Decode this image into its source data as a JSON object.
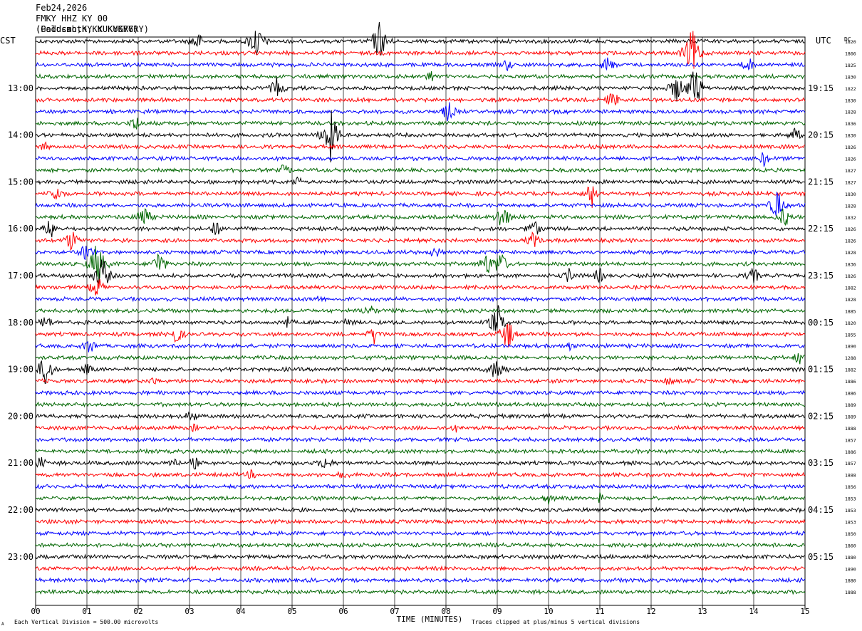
{
  "header": {
    "date": "Feb24,2026",
    "station": "FMKY HHZ KY 00",
    "location_a": "(Goldsmoth,KY KUKYGRY)",
    "location_b": "(Paducah,KY KUKYGRY)"
  },
  "chart_data": {
    "type": "line",
    "title": "",
    "xlabel": "TIME (MINUTES)",
    "left_axis_label": "CST",
    "right_axis_label": "UTC",
    "right_column_label": "DC",
    "xlim": [
      0,
      15
    ],
    "x_ticks": [
      "00",
      "01",
      "02",
      "03",
      "04",
      "05",
      "06",
      "07",
      "08",
      "09",
      "10",
      "11",
      "12",
      "13",
      "14",
      "15"
    ],
    "left_hour_labels": [
      "13:00",
      "14:00",
      "15:00",
      "16:00",
      "17:00",
      "18:00",
      "19:00",
      "20:00",
      "21:00",
      "22:00",
      "23:00"
    ],
    "right_hour_labels": [
      "19:15",
      "20:15",
      "21:15",
      "22:15",
      "23:15",
      "00:15",
      "01:15",
      "02:15",
      "03:15",
      "04:15",
      "05:15"
    ],
    "first_hour_label_row": 4,
    "rows_per_hour": 4,
    "trace_colors": [
      "#000000",
      "#ff0000",
      "#0000ff",
      "#006600"
    ],
    "grid": true,
    "traces": 48,
    "dc_offsets": [
      1820,
      1866,
      1825,
      1830,
      1822,
      1830,
      1828,
      1836,
      1830,
      1826,
      1826,
      1827,
      1827,
      1830,
      1828,
      1832,
      1826,
      1826,
      1828,
      1836,
      1826,
      1882,
      1828,
      1885,
      1820,
      1855,
      1890,
      1288,
      1882,
      1886,
      1886,
      1889,
      1889,
      1888,
      1857,
      1886,
      1857,
      1888,
      1856,
      1853,
      1853,
      1853,
      1850,
      1860,
      1880,
      1890,
      1880,
      1888
    ],
    "events": [
      {
        "row": 0,
        "minute": 3.15,
        "amp": 16
      },
      {
        "row": 0,
        "minute": 4.3,
        "amp": 28
      },
      {
        "row": 0,
        "minute": 6.7,
        "amp": 30
      },
      {
        "row": 1,
        "minute": 12.8,
        "amp": 40
      },
      {
        "row": 2,
        "minute": 11.15,
        "amp": 14
      },
      {
        "row": 2,
        "minute": 13.9,
        "amp": 12
      },
      {
        "row": 2,
        "minute": 9.2,
        "amp": 10
      },
      {
        "row": 3,
        "minute": 7.7,
        "amp": 10
      },
      {
        "row": 4,
        "minute": 4.7,
        "amp": 16
      },
      {
        "row": 4,
        "minute": 12.85,
        "amp": 35
      },
      {
        "row": 4,
        "minute": 12.5,
        "amp": 22
      },
      {
        "row": 5,
        "minute": 11.25,
        "amp": 14
      },
      {
        "row": 6,
        "minute": 8.05,
        "amp": 16
      },
      {
        "row": 7,
        "minute": 1.95,
        "amp": 14
      },
      {
        "row": 8,
        "minute": 5.75,
        "amp": 40
      },
      {
        "row": 8,
        "minute": 14.8,
        "amp": 12
      },
      {
        "row": 9,
        "minute": 0.2,
        "amp": 8
      },
      {
        "row": 10,
        "minute": 14.2,
        "amp": 12
      },
      {
        "row": 11,
        "minute": 4.85,
        "amp": 10
      },
      {
        "row": 13,
        "minute": 10.85,
        "amp": 20
      },
      {
        "row": 13,
        "minute": 0.4,
        "amp": 14
      },
      {
        "row": 12,
        "minute": 5.1,
        "amp": 8
      },
      {
        "row": 14,
        "minute": 14.45,
        "amp": 25
      },
      {
        "row": 15,
        "minute": 2.1,
        "amp": 20
      },
      {
        "row": 15,
        "minute": 9.1,
        "amp": 22
      },
      {
        "row": 15,
        "minute": 14.6,
        "amp": 16
      },
      {
        "row": 16,
        "minute": 0.3,
        "amp": 18
      },
      {
        "row": 16,
        "minute": 3.5,
        "amp": 14
      },
      {
        "row": 16,
        "minute": 9.7,
        "amp": 16
      },
      {
        "row": 17,
        "minute": 0.7,
        "amp": 18
      },
      {
        "row": 17,
        "minute": 9.7,
        "amp": 14
      },
      {
        "row": 18,
        "minute": 1.0,
        "amp": 16
      },
      {
        "row": 18,
        "minute": 7.8,
        "amp": 10
      },
      {
        "row": 19,
        "minute": 1.2,
        "amp": 36
      },
      {
        "row": 19,
        "minute": 2.4,
        "amp": 20
      },
      {
        "row": 19,
        "minute": 8.8,
        "amp": 18
      },
      {
        "row": 19,
        "minute": 9.05,
        "amp": 22
      },
      {
        "row": 20,
        "minute": 1.3,
        "amp": 30
      },
      {
        "row": 20,
        "minute": 10.4,
        "amp": 12
      },
      {
        "row": 20,
        "minute": 11.0,
        "amp": 12
      },
      {
        "row": 20,
        "minute": 14.0,
        "amp": 14
      },
      {
        "row": 21,
        "minute": 1.2,
        "amp": 18
      },
      {
        "row": 22,
        "minute": 5.5,
        "amp": 6
      },
      {
        "row": 23,
        "minute": 6.5,
        "amp": 12
      },
      {
        "row": 24,
        "minute": 0.2,
        "amp": 12
      },
      {
        "row": 24,
        "minute": 4.9,
        "amp": 10
      },
      {
        "row": 24,
        "minute": 9.0,
        "amp": 30
      },
      {
        "row": 24,
        "minute": 6.1,
        "amp": 8
      },
      {
        "row": 25,
        "minute": 2.75,
        "amp": 16
      },
      {
        "row": 25,
        "minute": 6.6,
        "amp": 14
      },
      {
        "row": 25,
        "minute": 9.2,
        "amp": 26
      },
      {
        "row": 26,
        "minute": 1.05,
        "amp": 14
      },
      {
        "row": 26,
        "minute": 10.4,
        "amp": 8
      },
      {
        "row": 27,
        "minute": 14.9,
        "amp": 12
      },
      {
        "row": 28,
        "minute": 0.2,
        "amp": 28
      },
      {
        "row": 28,
        "minute": 1.0,
        "amp": 10
      },
      {
        "row": 28,
        "minute": 9.0,
        "amp": 22
      },
      {
        "row": 29,
        "minute": 2.3,
        "amp": 8
      },
      {
        "row": 29,
        "minute": 12.35,
        "amp": 8
      },
      {
        "row": 32,
        "minute": 3.05,
        "amp": 10
      },
      {
        "row": 33,
        "minute": 3.1,
        "amp": 8
      },
      {
        "row": 33,
        "minute": 8.2,
        "amp": 6
      },
      {
        "row": 36,
        "minute": 0.1,
        "amp": 10
      },
      {
        "row": 36,
        "minute": 2.7,
        "amp": 10
      },
      {
        "row": 36,
        "minute": 3.1,
        "amp": 10
      },
      {
        "row": 36,
        "minute": 5.65,
        "amp": 12
      },
      {
        "row": 37,
        "minute": 4.2,
        "amp": 8
      },
      {
        "row": 37,
        "minute": 6.0,
        "amp": 8
      },
      {
        "row": 39,
        "minute": 10.0,
        "amp": 10
      },
      {
        "row": 39,
        "minute": 11.0,
        "amp": 8
      },
      {
        "row": 46,
        "minute": 10.0,
        "amp": 6
      }
    ]
  },
  "footer": {
    "scale_note": "Each Vertical Division =  500.00 microvolts",
    "clip_note": "Traces clipped at plus/minus 5 vertical divisions",
    "corner_mark": "A"
  }
}
